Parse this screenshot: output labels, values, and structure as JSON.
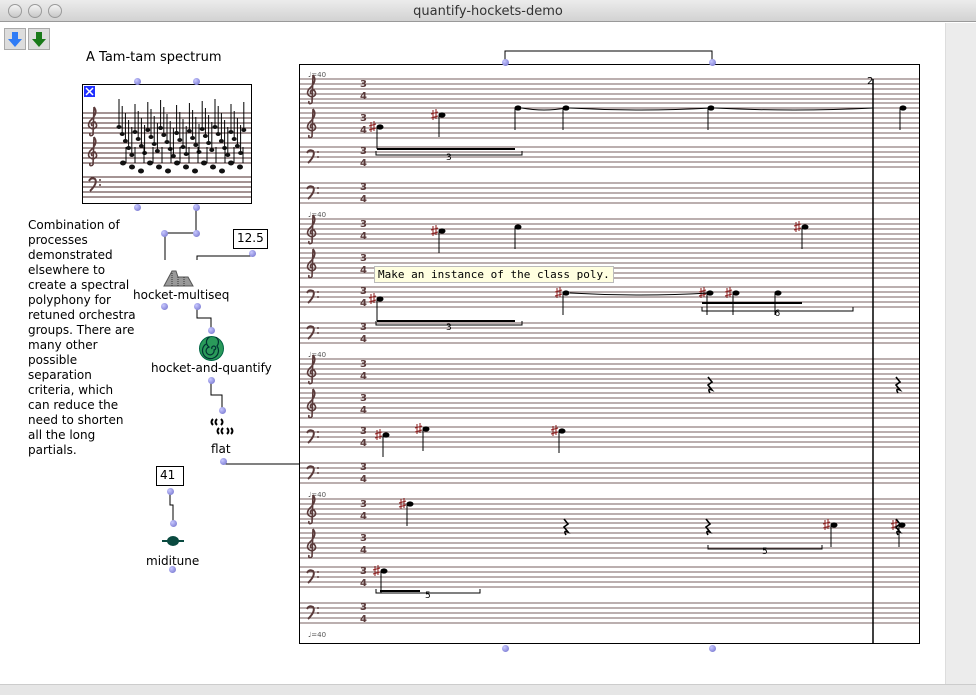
{
  "window": {
    "title": "quantify-hockets-demo"
  },
  "toolbar": {
    "buttons": [
      {
        "icon": "blue-down-arrow-icon",
        "color": "#2f7cf6"
      },
      {
        "icon": "green-down-arrow-icon",
        "color": "#1a7a1a"
      }
    ]
  },
  "patch": {
    "spectrum_title": "A Tam-tam spectrum",
    "comment": "Combination of processes demonstrated elsewhere to create a spectral polyphony for retuned orchestra groups. There are many other possible separation criteria, which can reduce the need to shorten all the long partials.",
    "boxes": {
      "hocket_multiseq": "hocket-multiseq",
      "hocket_and_quantify": "hocket-and-quantify",
      "flat": "flat",
      "miditune": "miditune",
      "value_a": "12.5",
      "value_b": "41"
    },
    "tooltip": "Make an instance of the class poly."
  },
  "score": {
    "tempo": "=40",
    "time_signature": [
      "3",
      "4"
    ],
    "measure_number": "2",
    "tuplets": [
      "3",
      "3",
      "6",
      "5"
    ],
    "staff_color": "#4a2a2a"
  }
}
